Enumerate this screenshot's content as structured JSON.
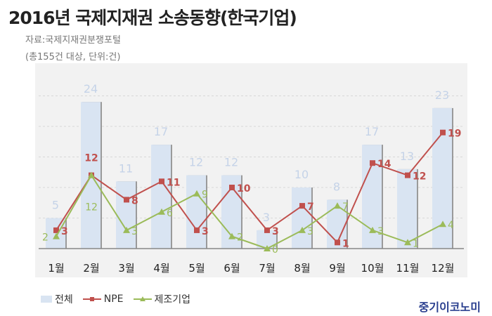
{
  "header": {
    "title": "2016년 국제지재권 소송동향(한국기업)",
    "source": "자료:국제지재권분쟁포털",
    "unit": "(총155건 대상, 단위:건)"
  },
  "brand": "중기이코노미",
  "chart_data": {
    "type": "bar+line",
    "title": "2016년 국제지재권 소송동향(한국기업)",
    "categories": [
      "1월",
      "2월",
      "3월",
      "4월",
      "5월",
      "6월",
      "7월",
      "8월",
      "9월",
      "10월",
      "11월",
      "12월"
    ],
    "series": [
      {
        "name": "전체",
        "type": "bar",
        "color": "#d9e4f2",
        "label_color": "#c5d3e8",
        "values": [
          5,
          24,
          11,
          17,
          12,
          12,
          3,
          10,
          8,
          17,
          13,
          23
        ]
      },
      {
        "name": "NPE",
        "type": "line",
        "marker": "square",
        "color": "#c0504d",
        "values": [
          3,
          12,
          8,
          11,
          3,
          10,
          3,
          7,
          1,
          14,
          12,
          19
        ]
      },
      {
        "name": "제조기업",
        "type": "line",
        "marker": "triangle",
        "color": "#9bbb59",
        "values": [
          2,
          12,
          3,
          6,
          9,
          2,
          0,
          3,
          7,
          3,
          1,
          4
        ]
      }
    ],
    "ylim": [
      0,
      30
    ],
    "grid": true,
    "legend": "bottom-left"
  }
}
